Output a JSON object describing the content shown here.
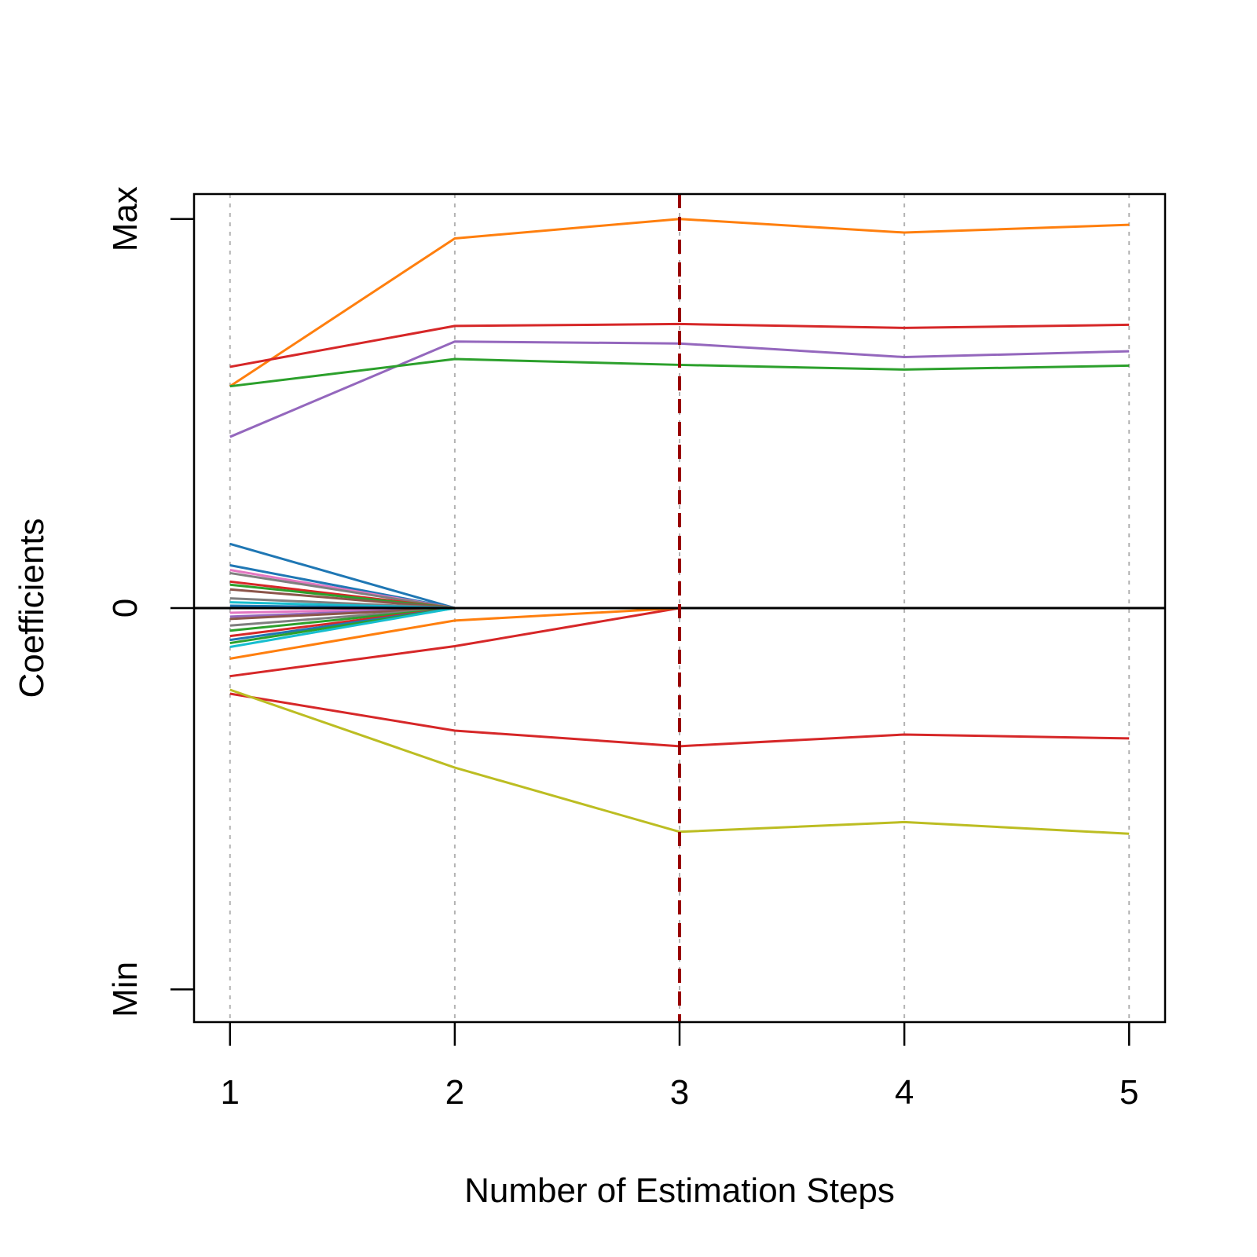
{
  "chart_data": {
    "type": "line",
    "title": "",
    "xlabel": "Number of Estimation Steps",
    "ylabel": "Coefficients",
    "x": [
      1,
      2,
      3,
      4,
      5
    ],
    "xlim": [
      0.84,
      5.16
    ],
    "ylim": [
      -1.064,
      1.064
    ],
    "y_ticks": [
      {
        "value": 1,
        "label": "Max"
      },
      {
        "value": 0,
        "label": "0"
      },
      {
        "value": -0.98,
        "label": "Min"
      }
    ],
    "x_grid": true,
    "zero_line_color": "#000000",
    "selected_step": 3,
    "selected_step_color": "#990000",
    "series": [
      {
        "color": "#ff7f0e",
        "values": [
          0.57,
          0.95,
          1.0,
          0.965,
          0.985
        ]
      },
      {
        "color": "#d62728",
        "values": [
          0.62,
          0.725,
          0.73,
          0.72,
          0.728
        ]
      },
      {
        "color": "#9467bd",
        "values": [
          0.44,
          0.685,
          0.68,
          0.645,
          0.66
        ]
      },
      {
        "color": "#2ca02c",
        "values": [
          0.57,
          0.64,
          0.625,
          0.613,
          0.623
        ]
      },
      {
        "color": "#d62728",
        "values": [
          -0.22,
          -0.315,
          -0.355,
          -0.325,
          -0.335
        ]
      },
      {
        "color": "#bcbd22",
        "values": [
          -0.21,
          -0.41,
          -0.575,
          -0.55,
          -0.58
        ]
      },
      {
        "color": "#d62728",
        "values": [
          -0.175,
          -0.098,
          0,
          0,
          0
        ]
      },
      {
        "color": "#ff7f0e",
        "values": [
          -0.13,
          -0.032,
          0,
          0,
          0
        ]
      },
      {
        "color": "#1f77b4",
        "values": [
          0.165,
          0,
          0,
          0,
          0
        ]
      },
      {
        "color": "#1f77b4",
        "values": [
          0.11,
          0,
          0,
          0,
          0
        ]
      },
      {
        "color": "#e377c2",
        "values": [
          0.098,
          0,
          0,
          0,
          0
        ]
      },
      {
        "color": "#7f7f7f",
        "values": [
          0.09,
          0,
          0,
          0,
          0
        ]
      },
      {
        "color": "#d62728",
        "values": [
          0.068,
          0,
          0,
          0,
          0
        ]
      },
      {
        "color": "#2ca02c",
        "values": [
          0.06,
          0,
          0,
          0,
          0
        ]
      },
      {
        "color": "#8c564b",
        "values": [
          0.048,
          0,
          0,
          0,
          0
        ]
      },
      {
        "color": "#7f7f7f",
        "values": [
          0.025,
          0,
          0,
          0,
          0
        ]
      },
      {
        "color": "#17becf",
        "values": [
          0.015,
          0,
          0,
          0,
          0
        ]
      },
      {
        "color": "#1f77b4",
        "values": [
          0.006,
          0,
          0,
          0,
          0
        ]
      },
      {
        "color": "#e377c2",
        "values": [
          -0.012,
          0,
          0,
          0,
          0
        ]
      },
      {
        "color": "#9467bd",
        "values": [
          -0.022,
          0,
          0,
          0,
          0
        ]
      },
      {
        "color": "#8c564b",
        "values": [
          -0.028,
          0,
          0,
          0,
          0
        ]
      },
      {
        "color": "#7f7f7f",
        "values": [
          -0.045,
          0,
          0,
          0,
          0
        ]
      },
      {
        "color": "#2ca02c",
        "values": [
          -0.058,
          0,
          0,
          0,
          0
        ]
      },
      {
        "color": "#d62728",
        "values": [
          -0.072,
          0,
          0,
          0,
          0
        ]
      },
      {
        "color": "#1f77b4",
        "values": [
          -0.082,
          0,
          0,
          0,
          0
        ]
      },
      {
        "color": "#2ca02c",
        "values": [
          -0.09,
          0,
          0,
          0,
          0
        ]
      },
      {
        "color": "#17becf",
        "values": [
          -0.1,
          0,
          0,
          0,
          0
        ]
      }
    ]
  }
}
